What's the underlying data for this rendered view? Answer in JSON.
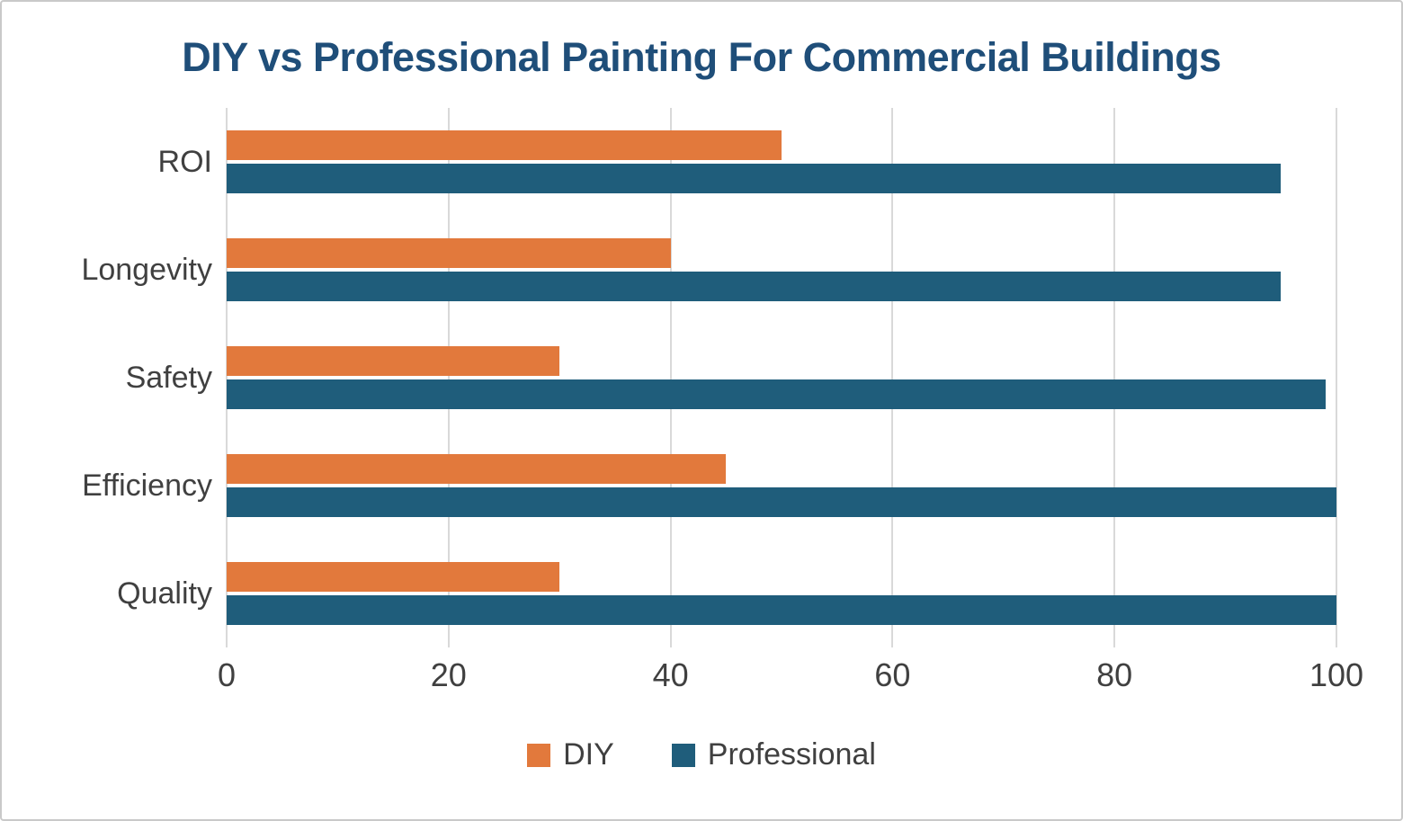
{
  "chart_data": {
    "type": "bar",
    "orientation": "horizontal",
    "title": "DIY vs Professional Painting For Commercial Buildings",
    "title_color": "#1F4E79",
    "categories": [
      "ROI",
      "Longevity",
      "Safety",
      "Efficiency",
      "Quality"
    ],
    "series": [
      {
        "name": "DIY",
        "color": "#E2793C",
        "values": [
          50,
          40,
          30,
          45,
          30
        ]
      },
      {
        "name": "Professional",
        "color": "#1F5D7B",
        "values": [
          95,
          95,
          99,
          100,
          100
        ]
      }
    ],
    "x_ticks": [
      0,
      20,
      40,
      60,
      80,
      100
    ],
    "xlim": [
      0,
      100
    ],
    "xlabel": "",
    "ylabel": "",
    "grid": true,
    "gridline_color": "#d9d9d9",
    "legend_position": "bottom"
  }
}
